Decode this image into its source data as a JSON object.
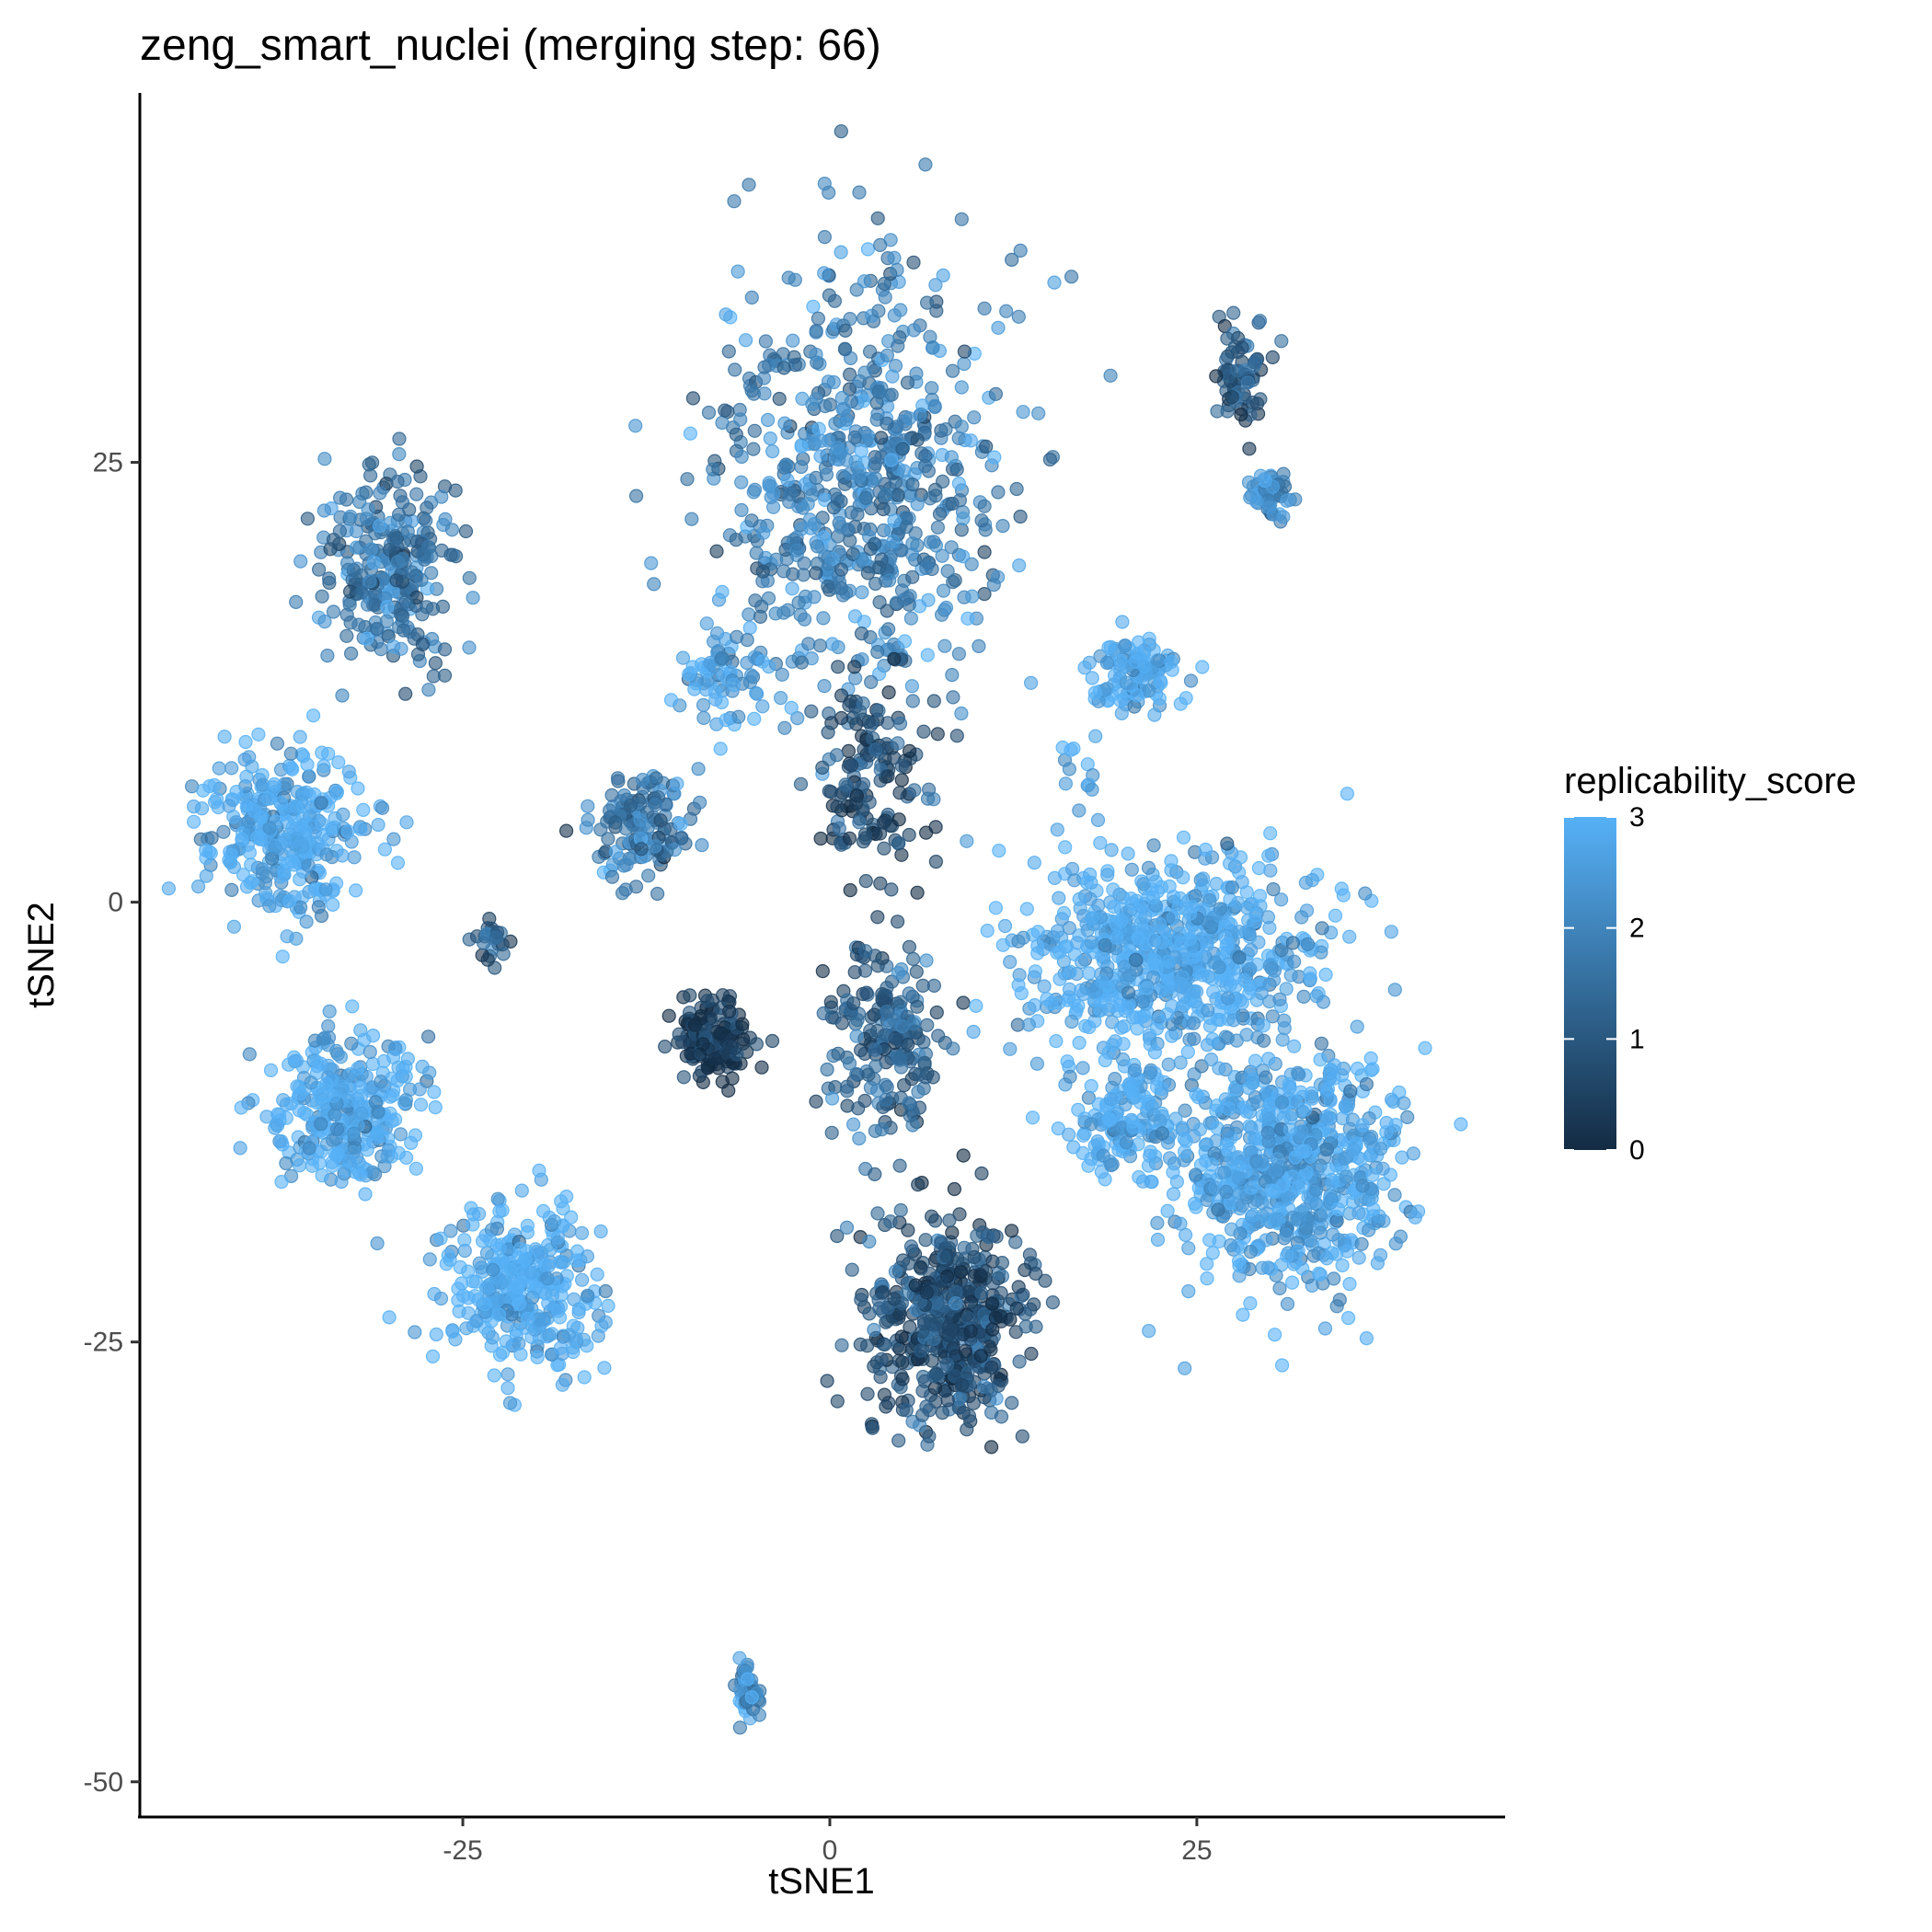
{
  "chart_data": {
    "type": "scatter",
    "title": "zeng_smart_nuclei (merging step: 66)",
    "xlabel": "tSNE1",
    "ylabel": "tSNE2",
    "xlim": [
      -47,
      46
    ],
    "ylim": [
      -52,
      46
    ],
    "x_ticks": [
      -25,
      0,
      25
    ],
    "x_tick_labels": [
      "-25",
      "0",
      "25"
    ],
    "y_ticks": [
      -50,
      -25,
      0,
      25
    ],
    "y_tick_labels": [
      "-50",
      "-25",
      "0",
      "25"
    ],
    "grid": false,
    "legend": {
      "title": "replicability_score",
      "position": "right",
      "type": "colorbar",
      "range": [
        0,
        3
      ],
      "breaks": [
        0,
        1,
        2,
        3
      ],
      "break_labels": [
        "0",
        "1",
        "2",
        "3"
      ],
      "color_low": "#132B43",
      "color_high": "#56B1F7"
    },
    "point_opacity": 0.6,
    "clusters": [
      {
        "cx": 2,
        "cy": 24,
        "sx": 9,
        "sy": 11,
        "score": 1.9,
        "n": 700
      },
      {
        "cx": -7,
        "cy": 12.5,
        "sx": 3,
        "sy": 2.5,
        "score": 2.8,
        "n": 70
      },
      {
        "cx": -13,
        "cy": 4.5,
        "sx": 3,
        "sy": 3,
        "score": 1.7,
        "n": 130
      },
      {
        "cx": 3,
        "cy": 7,
        "sx": 3.5,
        "sy": 4.5,
        "score": 0.7,
        "n": 150
      },
      {
        "cx": -30,
        "cy": 19,
        "sx": 4.5,
        "sy": 5,
        "score": 1.7,
        "n": 260
      },
      {
        "cx": -37,
        "cy": 4,
        "sx": 5,
        "sy": 4,
        "score": 2.8,
        "n": 330
      },
      {
        "cx": -23,
        "cy": -2,
        "sx": 1.2,
        "sy": 1.5,
        "score": 1.2,
        "n": 25
      },
      {
        "cx": -33,
        "cy": -12,
        "sx": 5,
        "sy": 4,
        "score": 2.8,
        "n": 300
      },
      {
        "cx": -21,
        "cy": -22,
        "sx": 4.5,
        "sy": 4,
        "score": 2.9,
        "n": 330
      },
      {
        "cx": -8,
        "cy": -8,
        "sx": 2.2,
        "sy": 2,
        "score": 0.35,
        "n": 150
      },
      {
        "cx": 4,
        "cy": -8,
        "sx": 3.5,
        "sy": 5,
        "score": 1.2,
        "n": 200
      },
      {
        "cx": 8,
        "cy": -24,
        "sx": 5,
        "sy": 5.5,
        "score": 0.8,
        "n": 500
      },
      {
        "cx": 21,
        "cy": 13,
        "sx": 2.5,
        "sy": 2,
        "score": 2.8,
        "n": 110
      },
      {
        "cx": 17,
        "cy": 8,
        "sx": 1.5,
        "sy": 2,
        "score": 2.8,
        "n": 12
      },
      {
        "cx": 28,
        "cy": 30,
        "sx": 1.6,
        "sy": 3,
        "score": 1.0,
        "n": 70
      },
      {
        "cx": 30,
        "cy": 23,
        "sx": 1.5,
        "sy": 1.2,
        "score": 2.0,
        "n": 50
      },
      {
        "cx": 23,
        "cy": -3,
        "sx": 9,
        "sy": 5,
        "score": 2.85,
        "n": 700
      },
      {
        "cx": 31,
        "cy": -15,
        "sx": 7,
        "sy": 6,
        "score": 2.7,
        "n": 700
      },
      {
        "cx": 20,
        "cy": -12,
        "sx": 3,
        "sy": 3,
        "score": 2.85,
        "n": 150
      },
      {
        "cx": -5.5,
        "cy": -45,
        "sx": 0.6,
        "sy": 1.6,
        "score": 2.2,
        "n": 55
      }
    ]
  }
}
